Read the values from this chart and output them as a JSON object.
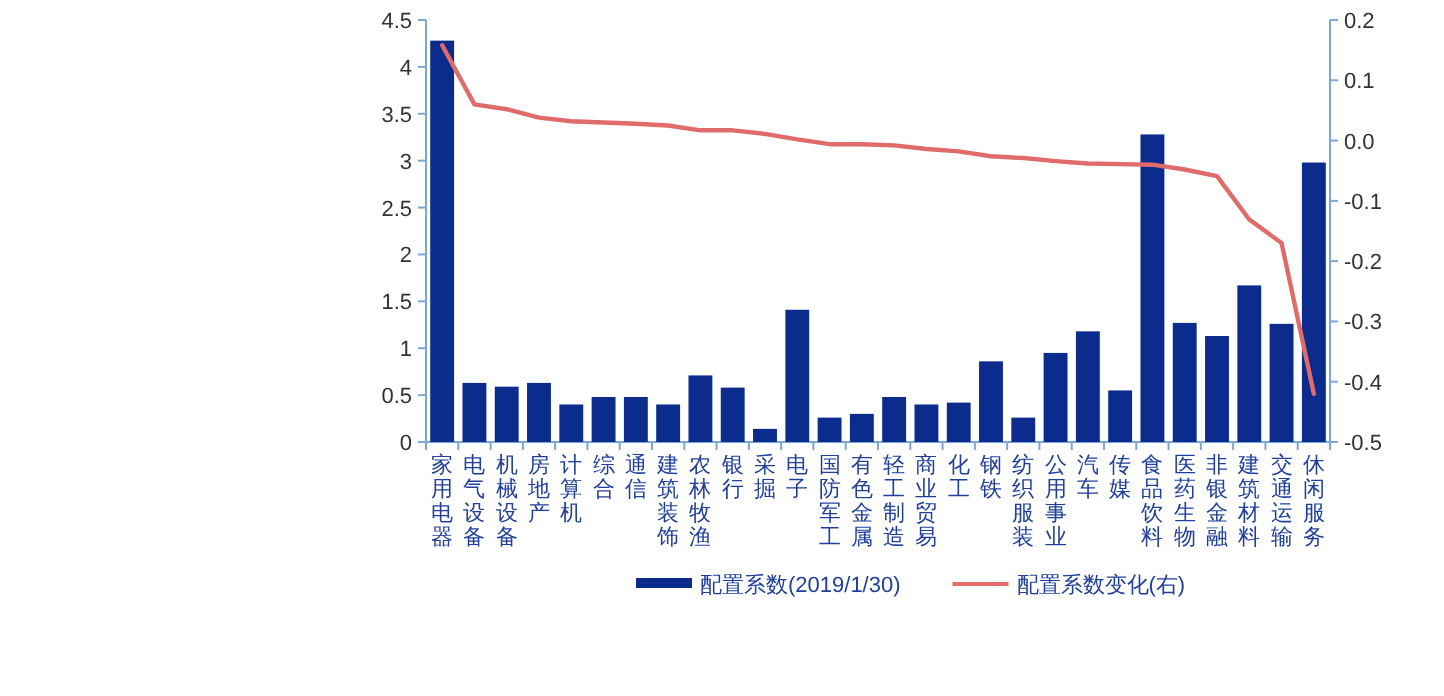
{
  "chart_data": {
    "type": "bar",
    "categories": [
      "家用电器",
      "电气设备",
      "机械设备",
      "房地产",
      "计算机",
      "综合",
      "通信",
      "建筑装饰",
      "农林牧渔",
      "银行",
      "采掘",
      "电子",
      "国防军工",
      "有色金属",
      "轻工制造",
      "商业贸易",
      "化工",
      "钢铁",
      "纺织服装",
      "公用事业",
      "汽车",
      "传媒",
      "食品饮料",
      "医药生物",
      "非银金融",
      "建筑材料",
      "交通运输",
      "休闲服务"
    ],
    "series": [
      {
        "name": "配置系数(2019/1/30)",
        "color": "#0b2c8c",
        "values": [
          4.28,
          0.63,
          0.59,
          0.63,
          0.4,
          0.48,
          0.48,
          0.4,
          0.71,
          0.58,
          0.14,
          1.41,
          0.26,
          0.3,
          0.48,
          0.4,
          0.42,
          0.86,
          0.26,
          0.95,
          1.18,
          0.55,
          3.28,
          1.27,
          1.13,
          1.67,
          1.26,
          2.98
        ]
      },
      {
        "name": "配置系数变化(右)",
        "type": "line",
        "axis": "y2",
        "color": "#e06b6b",
        "values": [
          0.158,
          0.06,
          0.052,
          0.038,
          0.032,
          0.03,
          0.028,
          0.025,
          0.017,
          0.017,
          0.011,
          0.002,
          -0.006,
          -0.006,
          -0.008,
          -0.014,
          -0.018,
          -0.026,
          -0.029,
          -0.034,
          -0.038,
          -0.039,
          -0.04,
          -0.048,
          -0.059,
          -0.131,
          -0.17,
          -0.42
        ]
      }
    ],
    "ylim": [
      0,
      4.5
    ],
    "yticks": [
      0,
      0.5,
      1,
      1.5,
      2,
      2.5,
      3,
      3.5,
      4,
      4.5
    ],
    "y2lim": [
      -0.5,
      0.2
    ],
    "y2ticks": [
      {
        "value": -0.5,
        "label": "-0.5"
      },
      {
        "value": -0.4,
        "label": "-0.4"
      },
      {
        "value": -0.3,
        "label": "-0.3"
      },
      {
        "value": -0.2,
        "label": "-0.2"
      },
      {
        "value": -0.1,
        "label": "-0.1"
      },
      {
        "value": 0,
        "label": "0.0"
      },
      {
        "value": 0.1,
        "label": "0.1"
      },
      {
        "value": 0.2,
        "label": "0.2"
      }
    ],
    "legend": "bottom"
  }
}
